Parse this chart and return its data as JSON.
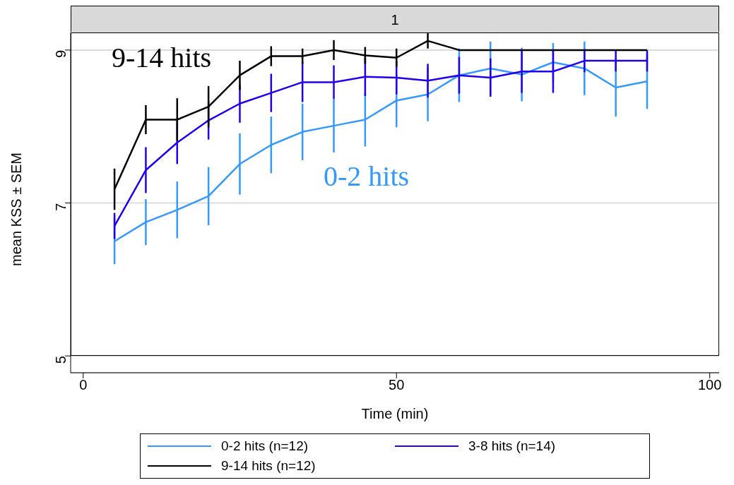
{
  "chart_data": {
    "type": "line",
    "title": "1",
    "xlabel": "Time (min)",
    "ylabel": "mean KSS ± SEM",
    "x": [
      5,
      10,
      15,
      20,
      25,
      30,
      35,
      40,
      45,
      50,
      55,
      60,
      65,
      70,
      75,
      80,
      85,
      90
    ],
    "series": [
      {
        "name": "0-2 hits (n=12)",
        "color": "#3399ff",
        "values": [
          6.5,
          6.75,
          6.91,
          7.09,
          7.51,
          7.76,
          7.93,
          8.01,
          8.09,
          8.34,
          8.42,
          8.67,
          8.76,
          8.68,
          8.84,
          8.76,
          8.51,
          8.59
        ],
        "errors": [
          0.3,
          0.3,
          0.37,
          0.38,
          0.4,
          0.37,
          0.37,
          0.35,
          0.35,
          0.35,
          0.35,
          0.35,
          0.35,
          0.35,
          0.25,
          0.35,
          0.38,
          0.36
        ]
      },
      {
        "name": "3-8 hits (n=14)",
        "color": "#2200ee",
        "values": [
          6.7,
          7.43,
          7.79,
          8.08,
          8.3,
          8.44,
          8.58,
          8.58,
          8.65,
          8.64,
          8.6,
          8.67,
          8.64,
          8.72,
          8.72,
          8.86,
          8.86,
          8.86
        ],
        "errors": [
          0.17,
          0.3,
          0.28,
          0.25,
          0.25,
          0.25,
          0.26,
          0.22,
          0.25,
          0.22,
          0.22,
          0.24,
          0.25,
          0.28,
          0.28,
          0.15,
          0.14,
          0.14
        ]
      },
      {
        "name": "9-14 hits (n=12)",
        "color": "#000000",
        "values": [
          7.18,
          8.09,
          8.09,
          8.26,
          8.67,
          8.92,
          8.92,
          9.0,
          8.93,
          8.9,
          9.12,
          9.0,
          9.0,
          9.0,
          9.0,
          9.0,
          9.0,
          9.0
        ],
        "errors": [
          0.27,
          0.19,
          0.28,
          0.27,
          0.19,
          0.13,
          0.1,
          0.13,
          0.11,
          0.12,
          0.1,
          null,
          null,
          null,
          null,
          null,
          null,
          null
        ]
      }
    ],
    "annotations": [
      "9-14 hits",
      "0-2 hits"
    ],
    "xlim": [
      -2,
      101.5
    ],
    "xticks": [
      0,
      50,
      100
    ],
    "ylim": [
      4.78,
      9.23
    ],
    "yticks": [
      5,
      7,
      9
    ],
    "grid": "y",
    "legend": "bottom",
    "marker": "none",
    "line_style": "solid"
  }
}
